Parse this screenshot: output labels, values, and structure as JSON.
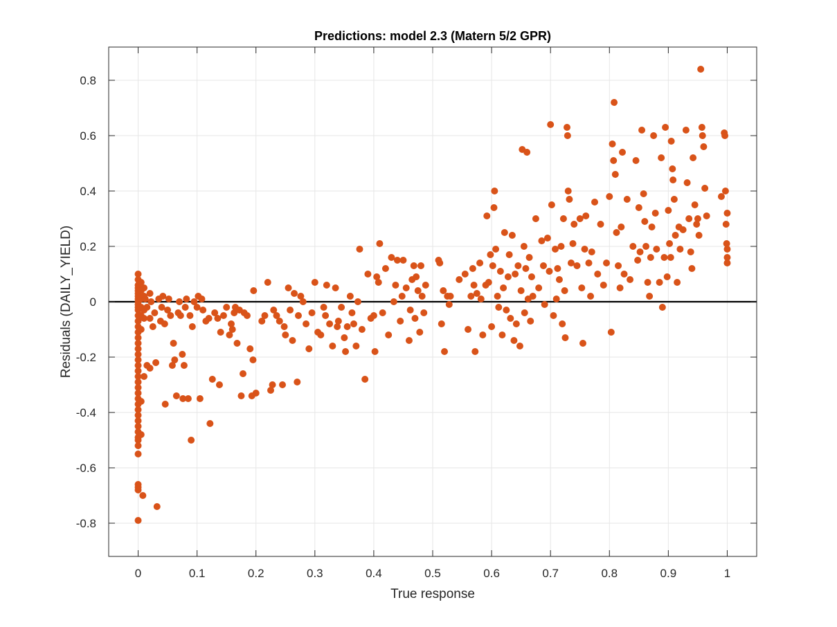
{
  "chart_data": {
    "type": "scatter",
    "title": "Predictions: model 2.3 (Matern 5/2 GPR)",
    "xlabel": "True response",
    "ylabel": "Residuals (DAILY_YIELD)",
    "xlim": [
      -0.05,
      1.05
    ],
    "ylim": [
      -0.92,
      0.92
    ],
    "xticks": [
      0,
      0.1,
      0.2,
      0.3,
      0.4,
      0.5,
      0.6,
      0.7,
      0.8,
      0.9,
      1
    ],
    "xtick_labels": [
      "0",
      "0.1",
      "0.2",
      "0.3",
      "0.4",
      "0.5",
      "0.6",
      "0.7",
      "0.8",
      "0.9",
      "1"
    ],
    "yticks": [
      -0.8,
      -0.6,
      -0.4,
      -0.2,
      0,
      0.2,
      0.4,
      0.6,
      0.8
    ],
    "ytick_labels": [
      "-0.8",
      "-0.6",
      "-0.4",
      "-0.2",
      "0",
      "0.2",
      "0.4",
      "0.6",
      "0.8"
    ],
    "grid": true,
    "reference_line_y": 0,
    "colors": {
      "points": "#D95319",
      "zero_line": "#000000",
      "grid": "#e6e6e6",
      "axis": "#262626"
    },
    "points": [
      [
        0,
        0.1
      ],
      [
        0,
        0.08
      ],
      [
        0,
        0.06
      ],
      [
        0,
        0.05
      ],
      [
        0,
        0.04
      ],
      [
        0,
        0.03
      ],
      [
        0,
        0.02
      ],
      [
        0,
        0.01
      ],
      [
        0,
        0
      ],
      [
        0,
        -0.01
      ],
      [
        0,
        -0.02
      ],
      [
        0,
        -0.03
      ],
      [
        0,
        -0.05
      ],
      [
        0,
        -0.07
      ],
      [
        0,
        -0.09
      ],
      [
        0,
        -0.11
      ],
      [
        0,
        -0.13
      ],
      [
        0,
        -0.15
      ],
      [
        0,
        -0.17
      ],
      [
        0,
        -0.19
      ],
      [
        0,
        -0.21
      ],
      [
        0,
        -0.23
      ],
      [
        0,
        -0.25
      ],
      [
        0,
        -0.27
      ],
      [
        0,
        -0.29
      ],
      [
        0,
        -0.31
      ],
      [
        0,
        -0.33
      ],
      [
        0,
        -0.35
      ],
      [
        0,
        -0.37
      ],
      [
        0,
        -0.39
      ],
      [
        0,
        -0.41
      ],
      [
        0,
        -0.43
      ],
      [
        0,
        -0.45
      ],
      [
        0,
        -0.47
      ],
      [
        0,
        -0.49
      ],
      [
        0,
        -0.5
      ],
      [
        0,
        -0.52
      ],
      [
        0,
        -0.55
      ],
      [
        0,
        -0.66
      ],
      [
        0,
        -0.67
      ],
      [
        0,
        -0.68
      ],
      [
        0,
        -0.79
      ],
      [
        0.005,
        0.07
      ],
      [
        0.005,
        0.04
      ],
      [
        0.005,
        0.01
      ],
      [
        0.005,
        -0.02
      ],
      [
        0.005,
        -0.05
      ],
      [
        0.005,
        -0.1
      ],
      [
        0.005,
        -0.36
      ],
      [
        0.005,
        -0.48
      ],
      [
        0.008,
        -0.7
      ],
      [
        0.01,
        0.05
      ],
      [
        0.01,
        0.02
      ],
      [
        0.01,
        -0.03
      ],
      [
        0.01,
        -0.06
      ],
      [
        0.01,
        -0.27
      ],
      [
        0.012,
        0.01
      ],
      [
        0.015,
        -0.23
      ],
      [
        0.015,
        -0.02
      ],
      [
        0.02,
        -0.24
      ],
      [
        0.02,
        -0.06
      ],
      [
        0.02,
        0.03
      ],
      [
        0.022,
        0
      ],
      [
        0.025,
        -0.09
      ],
      [
        0.028,
        -0.04
      ],
      [
        0.03,
        -0.22
      ],
      [
        0.032,
        -0.74
      ],
      [
        0.035,
        0.01
      ],
      [
        0.038,
        -0.07
      ],
      [
        0.04,
        -0.02
      ],
      [
        0.042,
        0.02
      ],
      [
        0.045,
        -0.08
      ],
      [
        0.046,
        -0.37
      ],
      [
        0.05,
        -0.03
      ],
      [
        0.052,
        0.01
      ],
      [
        0.055,
        -0.05
      ],
      [
        0.058,
        -0.23
      ],
      [
        0.06,
        -0.15
      ],
      [
        0.062,
        -0.21
      ],
      [
        0.065,
        -0.34
      ],
      [
        0.068,
        -0.04
      ],
      [
        0.07,
        0
      ],
      [
        0.072,
        -0.05
      ],
      [
        0.075,
        -0.19
      ],
      [
        0.076,
        -0.35
      ],
      [
        0.078,
        -0.23
      ],
      [
        0.08,
        -0.02
      ],
      [
        0.082,
        0.01
      ],
      [
        0.085,
        -0.35
      ],
      [
        0.088,
        -0.05
      ],
      [
        0.09,
        -0.5
      ],
      [
        0.092,
        -0.09
      ],
      [
        0.095,
        0
      ],
      [
        0.1,
        -0.02
      ],
      [
        0.102,
        0.02
      ],
      [
        0.105,
        -0.35
      ],
      [
        0.108,
        0.01
      ],
      [
        0.11,
        -0.03
      ],
      [
        0.115,
        -0.07
      ],
      [
        0.12,
        -0.06
      ],
      [
        0.122,
        -0.44
      ],
      [
        0.126,
        -0.28
      ],
      [
        0.13,
        -0.04
      ],
      [
        0.135,
        -0.06
      ],
      [
        0.138,
        -0.3
      ],
      [
        0.14,
        -0.11
      ],
      [
        0.145,
        -0.05
      ],
      [
        0.15,
        -0.02
      ],
      [
        0.155,
        -0.12
      ],
      [
        0.158,
        -0.08
      ],
      [
        0.16,
        -0.1
      ],
      [
        0.163,
        -0.04
      ],
      [
        0.165,
        -0.02
      ],
      [
        0.168,
        -0.15
      ],
      [
        0.172,
        -0.03
      ],
      [
        0.175,
        -0.34
      ],
      [
        0.178,
        -0.26
      ],
      [
        0.18,
        -0.04
      ],
      [
        0.185,
        -0.05
      ],
      [
        0.19,
        -0.17
      ],
      [
        0.193,
        -0.34
      ],
      [
        0.195,
        -0.21
      ],
      [
        0.196,
        0.04
      ],
      [
        0.2,
        -0.33
      ],
      [
        0.21,
        -0.07
      ],
      [
        0.215,
        -0.05
      ],
      [
        0.22,
        0.07
      ],
      [
        0.225,
        -0.32
      ],
      [
        0.228,
        -0.3
      ],
      [
        0.23,
        -0.03
      ],
      [
        0.235,
        -0.05
      ],
      [
        0.24,
        -0.07
      ],
      [
        0.245,
        -0.3
      ],
      [
        0.248,
        -0.09
      ],
      [
        0.25,
        -0.12
      ],
      [
        0.255,
        0.05
      ],
      [
        0.258,
        -0.03
      ],
      [
        0.262,
        -0.14
      ],
      [
        0.265,
        0.03
      ],
      [
        0.27,
        -0.29
      ],
      [
        0.272,
        -0.05
      ],
      [
        0.276,
        0.02
      ],
      [
        0.28,
        0
      ],
      [
        0.285,
        -0.08
      ],
      [
        0.29,
        -0.17
      ],
      [
        0.295,
        -0.04
      ],
      [
        0.3,
        0.07
      ],
      [
        0.305,
        -0.11
      ],
      [
        0.31,
        -0.12
      ],
      [
        0.315,
        -0.02
      ],
      [
        0.318,
        -0.05
      ],
      [
        0.32,
        0.06
      ],
      [
        0.325,
        -0.08
      ],
      [
        0.33,
        -0.16
      ],
      [
        0.335,
        0.05
      ],
      [
        0.338,
        -0.09
      ],
      [
        0.34,
        -0.07
      ],
      [
        0.345,
        -0.02
      ],
      [
        0.35,
        -0.13
      ],
      [
        0.352,
        -0.18
      ],
      [
        0.355,
        -0.09
      ],
      [
        0.36,
        0.02
      ],
      [
        0.363,
        -0.04
      ],
      [
        0.366,
        -0.08
      ],
      [
        0.37,
        -0.16
      ],
      [
        0.373,
        0
      ],
      [
        0.376,
        0.19
      ],
      [
        0.38,
        -0.1
      ],
      [
        0.385,
        -0.28
      ],
      [
        0.39,
        0.1
      ],
      [
        0.395,
        -0.06
      ],
      [
        0.4,
        -0.05
      ],
      [
        0.402,
        -0.18
      ],
      [
        0.405,
        0.09
      ],
      [
        0.408,
        0.07
      ],
      [
        0.41,
        0.21
      ],
      [
        0.415,
        -0.04
      ],
      [
        0.42,
        0.12
      ],
      [
        0.425,
        -0.12
      ],
      [
        0.43,
        0.16
      ],
      [
        0.434,
        0
      ],
      [
        0.437,
        0.06
      ],
      [
        0.44,
        0.15
      ],
      [
        0.445,
        -0.07
      ],
      [
        0.448,
        0.02
      ],
      [
        0.45,
        0.15
      ],
      [
        0.455,
        0.05
      ],
      [
        0.46,
        -0.14
      ],
      [
        0.462,
        -0.03
      ],
      [
        0.465,
        0.08
      ],
      [
        0.468,
        0.13
      ],
      [
        0.47,
        -0.06
      ],
      [
        0.472,
        0.09
      ],
      [
        0.475,
        0.04
      ],
      [
        0.478,
        -0.11
      ],
      [
        0.48,
        0.13
      ],
      [
        0.482,
        0.02
      ],
      [
        0.485,
        -0.04
      ],
      [
        0.488,
        0.06
      ],
      [
        0.51,
        0.15
      ],
      [
        0.512,
        0.14
      ],
      [
        0.515,
        -0.08
      ],
      [
        0.518,
        0.04
      ],
      [
        0.52,
        -0.18
      ],
      [
        0.525,
        0.02
      ],
      [
        0.528,
        -0.01
      ],
      [
        0.53,
        0.02
      ],
      [
        0.545,
        0.08
      ],
      [
        0.555,
        0.1
      ],
      [
        0.56,
        -0.1
      ],
      [
        0.565,
        0.02
      ],
      [
        0.568,
        0.12
      ],
      [
        0.57,
        0.06
      ],
      [
        0.572,
        -0.18
      ],
      [
        0.575,
        0.03
      ],
      [
        0.58,
        0.14
      ],
      [
        0.582,
        0.01
      ],
      [
        0.585,
        -0.12
      ],
      [
        0.59,
        0.06
      ],
      [
        0.592,
        0.31
      ],
      [
        0.595,
        0.07
      ],
      [
        0.598,
        0.17
      ],
      [
        0.6,
        -0.09
      ],
      [
        0.602,
        0.13
      ],
      [
        0.604,
        0.34
      ],
      [
        0.605,
        0.4
      ],
      [
        0.607,
        0.19
      ],
      [
        0.61,
        0.02
      ],
      [
        0.612,
        -0.02
      ],
      [
        0.615,
        0.11
      ],
      [
        0.618,
        -0.12
      ],
      [
        0.62,
        0.05
      ],
      [
        0.622,
        0.25
      ],
      [
        0.625,
        -0.03
      ],
      [
        0.628,
        0.09
      ],
      [
        0.63,
        0.17
      ],
      [
        0.632,
        -0.06
      ],
      [
        0.635,
        0.24
      ],
      [
        0.638,
        -0.14
      ],
      [
        0.64,
        0.1
      ],
      [
        0.642,
        -0.08
      ],
      [
        0.645,
        0.13
      ],
      [
        0.648,
        -0.16
      ],
      [
        0.65,
        0.04
      ],
      [
        0.652,
        0.55
      ],
      [
        0.655,
        0.2
      ],
      [
        0.656,
        -0.04
      ],
      [
        0.658,
        0.12
      ],
      [
        0.66,
        0.54
      ],
      [
        0.662,
        0.01
      ],
      [
        0.664,
        0.16
      ],
      [
        0.666,
        -0.07
      ],
      [
        0.668,
        0.09
      ],
      [
        0.67,
        0.02
      ],
      [
        0.675,
        0.3
      ],
      [
        0.68,
        0.05
      ],
      [
        0.685,
        0.22
      ],
      [
        0.688,
        0.13
      ],
      [
        0.69,
        -0.01
      ],
      [
        0.695,
        0.23
      ],
      [
        0.698,
        0.11
      ],
      [
        0.7,
        0.64
      ],
      [
        0.702,
        0.35
      ],
      [
        0.705,
        -0.05
      ],
      [
        0.708,
        0.19
      ],
      [
        0.71,
        0.01
      ],
      [
        0.712,
        0.12
      ],
      [
        0.715,
        0.08
      ],
      [
        0.718,
        0.2
      ],
      [
        0.72,
        -0.08
      ],
      [
        0.722,
        0.3
      ],
      [
        0.724,
        0.04
      ],
      [
        0.725,
        -0.13
      ],
      [
        0.728,
        0.63
      ],
      [
        0.729,
        0.6
      ],
      [
        0.73,
        0.4
      ],
      [
        0.732,
        0.37
      ],
      [
        0.735,
        0.14
      ],
      [
        0.738,
        0.21
      ],
      [
        0.74,
        0.28
      ],
      [
        0.745,
        0.13
      ],
      [
        0.75,
        0.3
      ],
      [
        0.753,
        0.05
      ],
      [
        0.755,
        -0.15
      ],
      [
        0.758,
        0.19
      ],
      [
        0.76,
        0.31
      ],
      [
        0.765,
        0.14
      ],
      [
        0.768,
        0.02
      ],
      [
        0.77,
        0.18
      ],
      [
        0.775,
        0.36
      ],
      [
        0.78,
        0.1
      ],
      [
        0.785,
        0.28
      ],
      [
        0.79,
        0.06
      ],
      [
        0.795,
        0.14
      ],
      [
        0.8,
        0.38
      ],
      [
        0.803,
        -0.11
      ],
      [
        0.805,
        0.57
      ],
      [
        0.807,
        0.51
      ],
      [
        0.808,
        0.72
      ],
      [
        0.81,
        0.46
      ],
      [
        0.812,
        0.25
      ],
      [
        0.815,
        0.13
      ],
      [
        0.818,
        0.05
      ],
      [
        0.82,
        0.27
      ],
      [
        0.822,
        0.54
      ],
      [
        0.825,
        0.1
      ],
      [
        0.83,
        0.37
      ],
      [
        0.835,
        0.08
      ],
      [
        0.84,
        0.2
      ],
      [
        0.845,
        0.51
      ],
      [
        0.848,
        0.15
      ],
      [
        0.85,
        0.34
      ],
      [
        0.852,
        0.18
      ],
      [
        0.855,
        0.62
      ],
      [
        0.858,
        0.39
      ],
      [
        0.86,
        0.29
      ],
      [
        0.862,
        0.2
      ],
      [
        0.865,
        0.07
      ],
      [
        0.868,
        0.02
      ],
      [
        0.87,
        0.16
      ],
      [
        0.872,
        0.27
      ],
      [
        0.875,
        0.6
      ],
      [
        0.878,
        0.32
      ],
      [
        0.88,
        0.19
      ],
      [
        0.885,
        0.07
      ],
      [
        0.888,
        0.52
      ],
      [
        0.89,
        -0.02
      ],
      [
        0.893,
        0.16
      ],
      [
        0.895,
        0.63
      ],
      [
        0.898,
        0.09
      ],
      [
        0.9,
        0.33
      ],
      [
        0.902,
        0.21
      ],
      [
        0.904,
        0.16
      ],
      [
        0.905,
        0.58
      ],
      [
        0.907,
        0.48
      ],
      [
        0.908,
        0.44
      ],
      [
        0.91,
        0.37
      ],
      [
        0.912,
        0.24
      ],
      [
        0.915,
        0.07
      ],
      [
        0.918,
        0.27
      ],
      [
        0.92,
        0.19
      ],
      [
        0.925,
        0.26
      ],
      [
        0.93,
        0.62
      ],
      [
        0.932,
        0.43
      ],
      [
        0.935,
        0.3
      ],
      [
        0.938,
        0.18
      ],
      [
        0.94,
        0.12
      ],
      [
        0.942,
        0.52
      ],
      [
        0.945,
        0.35
      ],
      [
        0.948,
        0.28
      ],
      [
        0.95,
        0.3
      ],
      [
        0.952,
        0.24
      ],
      [
        0.955,
        0.84
      ],
      [
        0.957,
        0.63
      ],
      [
        0.958,
        0.6
      ],
      [
        0.96,
        0.56
      ],
      [
        0.962,
        0.41
      ],
      [
        0.965,
        0.31
      ],
      [
        0.99,
        0.38
      ],
      [
        0.995,
        0.61
      ],
      [
        0.996,
        0.6
      ],
      [
        0.997,
        0.4
      ],
      [
        0.998,
        0.28
      ],
      [
        0.999,
        0.21
      ],
      [
        1,
        0.19
      ],
      [
        1,
        0.16
      ],
      [
        1,
        0.14
      ],
      [
        1,
        0.32
      ]
    ]
  }
}
